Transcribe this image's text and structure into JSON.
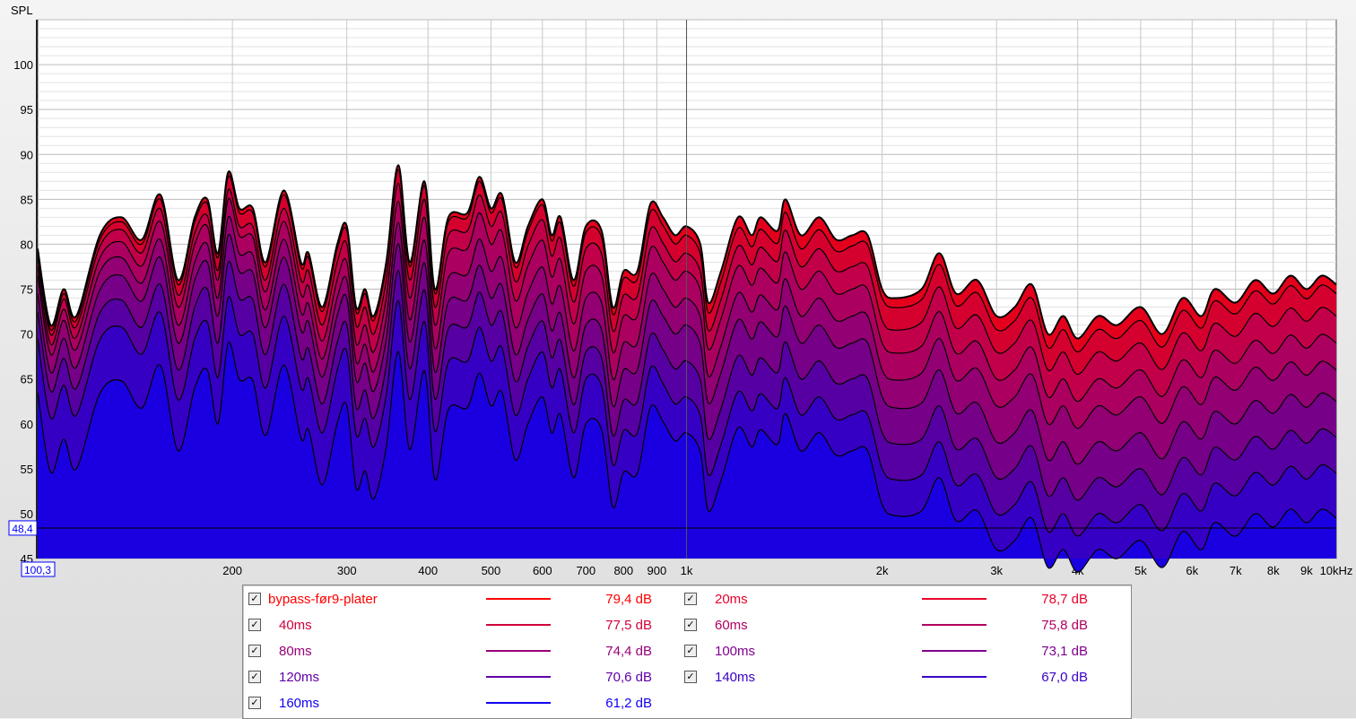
{
  "chart_data": {
    "type": "area",
    "ylabel": "SPL",
    "xunit": "kHz",
    "ylim": [
      45,
      105
    ],
    "xlim": [
      100.3,
      10000
    ],
    "yticks": [
      45,
      50,
      55,
      60,
      65,
      70,
      75,
      80,
      85,
      90,
      95,
      100
    ],
    "xticks": [
      {
        "v": 200,
        "l": "200"
      },
      {
        "v": 300,
        "l": "300"
      },
      {
        "v": 400,
        "l": "400"
      },
      {
        "v": 500,
        "l": "500"
      },
      {
        "v": 600,
        "l": "600"
      },
      {
        "v": 700,
        "l": "700"
      },
      {
        "v": 800,
        "l": "800"
      },
      {
        "v": 900,
        "l": "900"
      },
      {
        "v": 1000,
        "l": "1k"
      },
      {
        "v": 2000,
        "l": "2k"
      },
      {
        "v": 3000,
        "l": "3k"
      },
      {
        "v": 4000,
        "l": "4k"
      },
      {
        "v": 5000,
        "l": "5k"
      },
      {
        "v": 6000,
        "l": "6k"
      },
      {
        "v": 7000,
        "l": "7k"
      },
      {
        "v": 8000,
        "l": "8k"
      },
      {
        "v": 9000,
        "l": "9k"
      },
      {
        "v": 10000,
        "l": "10kHz"
      }
    ],
    "cursor": {
      "x_label": "100,3",
      "y_label": "48,4",
      "y": 48.4,
      "x": 1000
    },
    "freq": [
      100,
      105,
      110,
      115,
      125,
      135,
      145,
      155,
      165,
      175,
      183,
      190,
      197,
      205,
      215,
      225,
      240,
      255,
      262,
      275,
      290,
      300,
      310,
      320,
      330,
      345,
      360,
      375,
      395,
      410,
      430,
      460,
      480,
      500,
      520,
      545,
      570,
      600,
      620,
      640,
      670,
      700,
      740,
      770,
      800,
      840,
      880,
      920,
      960,
      1000,
      1050,
      1080,
      1130,
      1200,
      1260,
      1300,
      1380,
      1420,
      1500,
      1600,
      1700,
      1800,
      1900,
      2000,
      2100,
      2300,
      2450,
      2600,
      2800,
      3000,
      3200,
      3400,
      3600,
      3800,
      4000,
      4300,
      4600,
      5000,
      5400,
      5800,
      6200,
      6500,
      7000,
      7500,
      8000,
      8500,
      9000,
      9500,
      10000
    ],
    "top_values": [
      79.5,
      71,
      75,
      72,
      81,
      83,
      80.5,
      85.5,
      76,
      83,
      85,
      79,
      88,
      84,
      84,
      78,
      86,
      78,
      79,
      73,
      80,
      82,
      73,
      75,
      72,
      78,
      88.8,
      78,
      87,
      75,
      83,
      83.5,
      87.5,
      84,
      85.5,
      78,
      82,
      85,
      81,
      83,
      76,
      82,
      81.5,
      73,
      77,
      77,
      84.5,
      83,
      81,
      82,
      80,
      73.5,
      77,
      83,
      81,
      83,
      81.5,
      85,
      81,
      83,
      80.5,
      81,
      81,
      75,
      74,
      75,
      79,
      74.5,
      76,
      72,
      73,
      75.5,
      70,
      72,
      69.5,
      72,
      71,
      73,
      70,
      74,
      72,
      75,
      73.5,
      76,
      74.5,
      76.5,
      75,
      76.5,
      75.5
    ],
    "offset_freq": [
      100,
      150,
      200,
      300,
      500,
      700,
      1000,
      1500,
      2000,
      3000,
      5000,
      10000
    ],
    "series": [
      {
        "name": "bypass-før9-plater",
        "value": "79,4 dB",
        "color": "#ff0000",
        "fill": "#e4001c",
        "offsets": [
          0,
          0,
          0,
          0,
          0,
          0,
          0,
          0,
          0,
          0,
          0,
          0
        ]
      },
      {
        "name": "20ms",
        "value": "78,7 dB",
        "color": "#e8002c",
        "fill": "#d4002e",
        "offsets": [
          0.5,
          0.5,
          0.5,
          0.5,
          0.5,
          0.7,
          1,
          1.5,
          1,
          1.5,
          1.5,
          1
        ]
      },
      {
        "name": "40ms",
        "value": "77,5 dB",
        "color": "#d0003c",
        "fill": "#c2004a",
        "offsets": [
          1,
          1.5,
          2,
          2,
          2,
          2.5,
          3,
          3.5,
          3.5,
          4,
          4,
          3.5
        ]
      },
      {
        "name": "60ms",
        "value": "75,8 dB",
        "color": "#b00060",
        "fill": "#ac0060",
        "offsets": [
          2,
          3,
          3,
          4,
          4,
          5,
          5,
          6,
          6,
          7,
          7,
          6.5
        ]
      },
      {
        "name": "80ms",
        "value": "74,4 dB",
        "color": "#980078",
        "fill": "#920074",
        "offsets": [
          3,
          5,
          5,
          6,
          7,
          8,
          8,
          9,
          9,
          10,
          10,
          9.5
        ]
      },
      {
        "name": "100ms",
        "value": "73,1 dB",
        "color": "#800090",
        "fill": "#760088",
        "offsets": [
          5,
          7,
          7,
          8,
          10,
          11,
          11,
          12,
          12,
          14,
          14,
          13
        ]
      },
      {
        "name": "120ms",
        "value": "70,6 dB",
        "color": "#6000a8",
        "fill": "#5600a4",
        "offsets": [
          7,
          10,
          10,
          11,
          13,
          14,
          15,
          16,
          16,
          18,
          18,
          17
        ]
      },
      {
        "name": "140ms",
        "value": "67,0 dB",
        "color": "#3800c8",
        "fill": "#3600c4",
        "offsets": [
          10,
          13,
          14,
          14,
          17,
          17,
          19,
          20,
          20,
          22,
          22,
          21
        ]
      },
      {
        "name": "160ms",
        "value": "61,2 dB",
        "color": "#1000f0",
        "fill": "#1a00e0",
        "offsets": [
          16,
          19,
          19,
          20,
          22,
          22,
          23,
          24,
          24,
          26,
          26,
          26
        ]
      }
    ]
  },
  "legend": {
    "check": "✓"
  }
}
